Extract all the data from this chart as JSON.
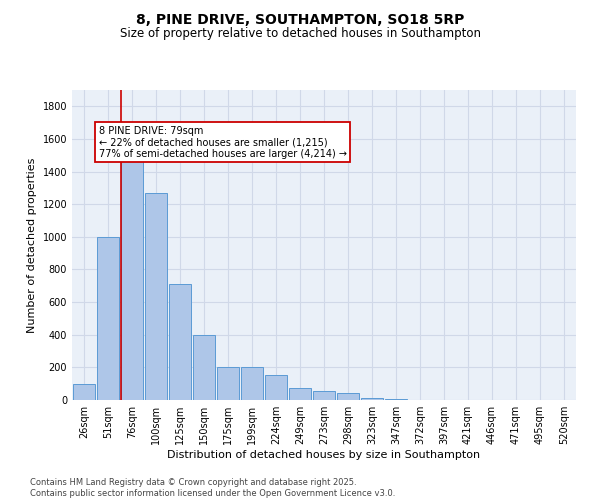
{
  "title1": "8, PINE DRIVE, SOUTHAMPTON, SO18 5RP",
  "title2": "Size of property relative to detached houses in Southampton",
  "xlabel": "Distribution of detached houses by size in Southampton",
  "ylabel": "Number of detached properties",
  "categories": [
    "26sqm",
    "51sqm",
    "76sqm",
    "100sqm",
    "125sqm",
    "150sqm",
    "175sqm",
    "199sqm",
    "224sqm",
    "249sqm",
    "273sqm",
    "298sqm",
    "323sqm",
    "347sqm",
    "372sqm",
    "397sqm",
    "421sqm",
    "446sqm",
    "471sqm",
    "495sqm",
    "520sqm"
  ],
  "values": [
    100,
    1000,
    1480,
    1270,
    710,
    400,
    205,
    205,
    155,
    75,
    55,
    40,
    15,
    5,
    0,
    0,
    0,
    0,
    0,
    0,
    0
  ],
  "bar_color": "#aec6e8",
  "bar_edge_color": "#5b9bd5",
  "vline_color": "#cc0000",
  "annotation_box_text": "8 PINE DRIVE: 79sqm\n← 22% of detached houses are smaller (1,215)\n77% of semi-detached houses are larger (4,214) →",
  "box_edge_color": "#cc0000",
  "ylim": [
    0,
    1900
  ],
  "yticks": [
    0,
    200,
    400,
    600,
    800,
    1000,
    1200,
    1400,
    1600,
    1800
  ],
  "grid_color": "#d0d8e8",
  "bg_color": "#eaf0f8",
  "footer_text": "Contains HM Land Registry data © Crown copyright and database right 2025.\nContains public sector information licensed under the Open Government Licence v3.0.",
  "title1_fontsize": 10,
  "title2_fontsize": 8.5,
  "xlabel_fontsize": 8,
  "ylabel_fontsize": 8,
  "tick_fontsize": 7,
  "annotation_fontsize": 7,
  "footer_fontsize": 6
}
